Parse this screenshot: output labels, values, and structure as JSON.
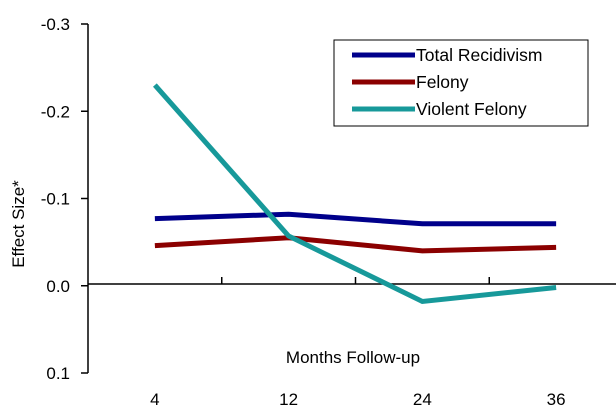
{
  "chart_data": {
    "type": "line",
    "title": "",
    "xlabel": "Months Follow-up",
    "ylabel": "Effect Size*",
    "categories": [
      "4",
      "12",
      "24",
      "36"
    ],
    "y_ticks": [
      "-0.3",
      "-0.2",
      "-0.1",
      "0.0",
      "0.1"
    ],
    "ylim": [
      0.1,
      -0.3
    ],
    "y_axis_reversed": true,
    "grid": false,
    "legend_position": "top-right",
    "series": [
      {
        "name": "Total Recidivism",
        "color": "#00008B",
        "values": [
          -0.077,
          -0.082,
          -0.071,
          -0.071
        ]
      },
      {
        "name": "Felony",
        "color": "#8B0000",
        "values": [
          -0.046,
          -0.055,
          -0.04,
          -0.044
        ]
      },
      {
        "name": "Violent Felony",
        "color": "#17999A",
        "values": [
          -0.23,
          -0.057,
          0.018,
          0.002
        ]
      }
    ]
  }
}
